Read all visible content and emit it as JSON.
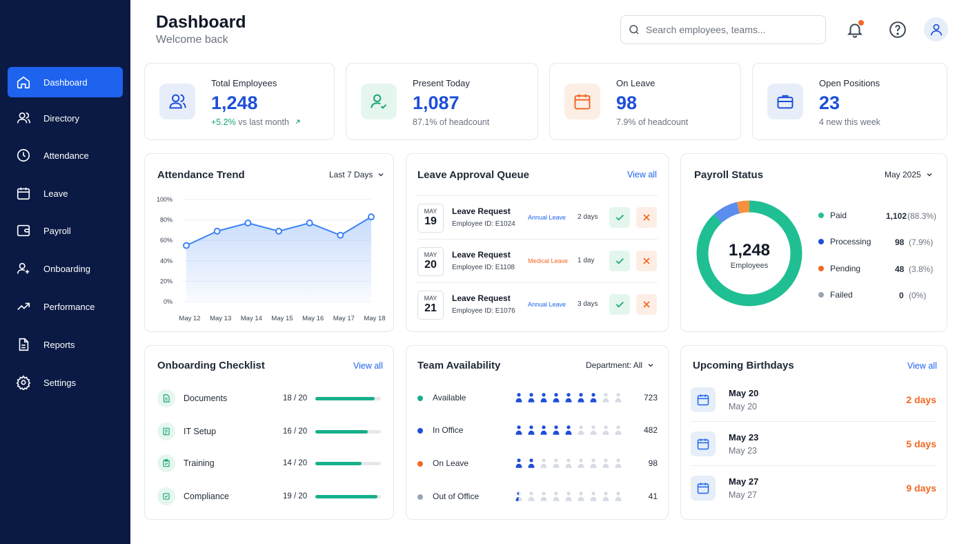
{
  "sidebar": {
    "items": [
      {
        "label": "Dashboard",
        "icon": "home-icon",
        "active": true
      },
      {
        "label": "Directory",
        "icon": "users-icon"
      },
      {
        "label": "Attendance",
        "icon": "clock-icon"
      },
      {
        "label": "Leave",
        "icon": "calendar-icon"
      },
      {
        "label": "Payroll",
        "icon": "wallet-icon"
      },
      {
        "label": "Onboarding",
        "icon": "user-plus-icon"
      },
      {
        "label": "Performance",
        "icon": "trend-icon"
      },
      {
        "label": "Reports",
        "icon": "document-icon"
      },
      {
        "label": "Settings",
        "icon": "gear-icon"
      }
    ]
  },
  "header": {
    "title": "Dashboard",
    "subtitle": "Welcome back",
    "search_placeholder": "Search employees, teams..."
  },
  "stats": [
    {
      "label": "Total Employees",
      "value": "1,248",
      "sub_positive": "+5.2%",
      "sub_text": "vs last month",
      "icon": "users-icon",
      "accent": "#1d4fd8"
    },
    {
      "label": "Present Today",
      "value": "1,087",
      "sub_text": "87.1% of headcount",
      "icon": "user-check-icon",
      "accent": "#17a673"
    },
    {
      "label": "On Leave",
      "value": "98",
      "sub_text": "7.9% of headcount",
      "icon": "calendar-icon",
      "accent": "#f26722"
    },
    {
      "label": "Open Positions",
      "value": "23",
      "sub_text": "4 new this week",
      "icon": "briefcase-icon",
      "accent": "#1d63ee"
    }
  ],
  "attendance": {
    "title": "Attendance Trend",
    "range": "Last 7 Days"
  },
  "chart_data": {
    "type": "area",
    "x": [
      "May 12",
      "May 13",
      "May 14",
      "May 15",
      "May 16",
      "May 17",
      "May 18"
    ],
    "series": [
      {
        "values": [
          55,
          69,
          77,
          69,
          77,
          65,
          83
        ]
      }
    ],
    "yticks": [
      "100%",
      "80%",
      "60%",
      "40%",
      "20%",
      "0%"
    ],
    "ylim": [
      0,
      100
    ],
    "color": "#3b82f6"
  },
  "leave_queue": {
    "title": "Leave Approval Queue",
    "view_all": "View all",
    "rows": [
      {
        "month": "MAY",
        "day": "19",
        "title": "Leave Request",
        "employee": "Employee ID: E1024",
        "type": "Annual Leave",
        "type_color": "#1d63ee",
        "days": "2 days"
      },
      {
        "month": "MAY",
        "day": "20",
        "title": "Leave Request",
        "employee": "Employee ID: E1108",
        "type": "Medical Leave",
        "type_color": "#f26722",
        "days": "1 day"
      },
      {
        "month": "MAY",
        "day": "21",
        "title": "Leave Request",
        "employee": "Employee ID: E1076",
        "type": "Annual Leave",
        "type_color": "#1d63ee",
        "days": "3 days"
      }
    ]
  },
  "payroll": {
    "title": "Payroll Status",
    "period": "May 2025",
    "center_value": "1,248",
    "center_label": "Employees",
    "items": [
      {
        "label": "Paid",
        "count": "1,102",
        "pct": "(88.3%)",
        "color": "#1fbf93",
        "value": 1102
      },
      {
        "label": "Processing",
        "count": "98",
        "pct": "(7.9%)",
        "color": "#1d4fd8",
        "value": 98
      },
      {
        "label": "Pending",
        "count": "48",
        "pct": "(3.8%)",
        "color": "#f26722",
        "value": 48
      },
      {
        "label": "Failed",
        "count": "0",
        "pct": "(0%)",
        "color": "#9aa3b5",
        "value": 0
      }
    ],
    "ring_colors": [
      "#1fbf93",
      "#f7913d",
      "#5b8def"
    ]
  },
  "onboarding": {
    "title": "Onboarding Checklist",
    "view_all": "View all",
    "items": [
      {
        "label": "Documents",
        "count": "18 / 20",
        "progress": 0.9
      },
      {
        "label": "IT Setup",
        "count": "16 / 20",
        "progress": 0.8
      },
      {
        "label": "Training",
        "count": "14 / 20",
        "progress": 0.7
      },
      {
        "label": "Compliance",
        "count": "19 / 20",
        "progress": 0.95
      }
    ]
  },
  "team": {
    "title": "Team Availability",
    "filter": "Department: All",
    "rows": [
      {
        "label": "Available",
        "count": "723",
        "color": "#17b08b",
        "filled": 7,
        "partial": false
      },
      {
        "label": "In Office",
        "count": "482",
        "color": "#1d4fd8",
        "filled": 5,
        "partial": false
      },
      {
        "label": "On Leave",
        "count": "98",
        "color": "#f26722",
        "filled": 2,
        "partial": false
      },
      {
        "label": "Out of Office",
        "count": "41",
        "color": "#9aa3b5",
        "filled": 0,
        "partial": true
      }
    ],
    "icon_color": "#1d4fd8",
    "icon_empty_color": "#d6dbe4"
  },
  "birthdays": {
    "title": "Upcoming Birthdays",
    "view_all": "View all",
    "items": [
      {
        "name": "May 20",
        "date": "May 20",
        "days": "2 days"
      },
      {
        "name": "May 23",
        "date": "May 23",
        "days": "5 days"
      },
      {
        "name": "May 27",
        "date": "May 27",
        "days": "9 days"
      }
    ]
  }
}
